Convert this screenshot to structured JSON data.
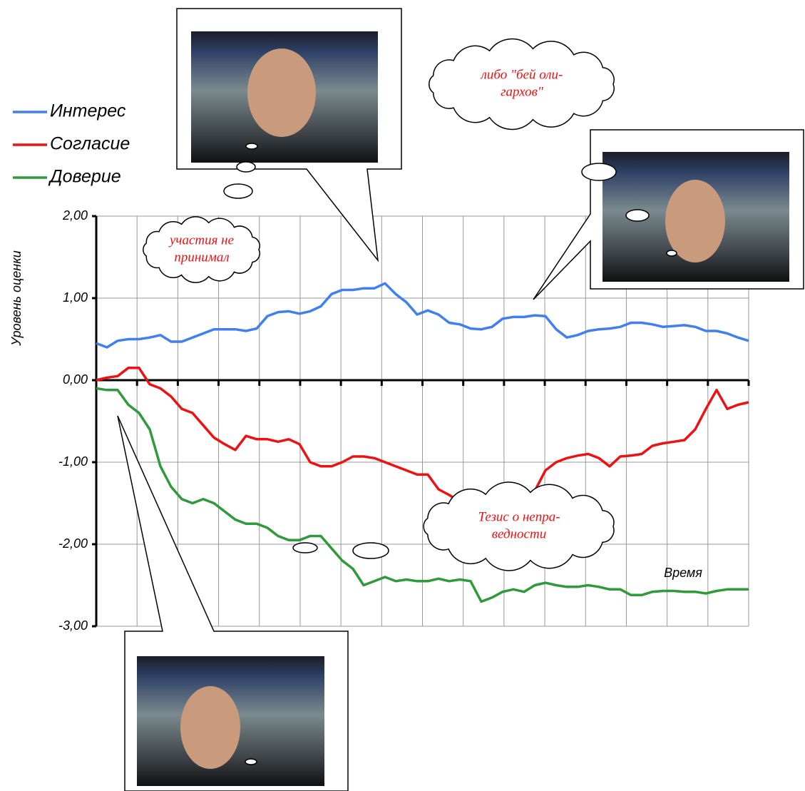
{
  "chart_data": {
    "type": "line",
    "y_label": "Уровень оценки",
    "x_label": "Время",
    "ylim": [
      -3,
      2
    ],
    "yticks": [
      {
        "value": 2,
        "label": "2,00"
      },
      {
        "value": 1,
        "label": "1,00"
      },
      {
        "value": 0,
        "label": "0,00"
      },
      {
        "value": -1,
        "label": "-1,00"
      },
      {
        "value": -2,
        "label": "-2,00"
      },
      {
        "value": -3,
        "label": "-3,00"
      }
    ],
    "grid": true,
    "series": [
      {
        "name": "Интерес",
        "color": "#3f7ff0",
        "values": [
          0.45,
          0.4,
          0.48,
          0.5,
          0.5,
          0.52,
          0.55,
          0.47,
          0.47,
          0.52,
          0.57,
          0.62,
          0.62,
          0.62,
          0.6,
          0.63,
          0.78,
          0.83,
          0.84,
          0.81,
          0.84,
          0.9,
          1.05,
          1.1,
          1.1,
          1.12,
          1.12,
          1.18,
          1.05,
          0.95,
          0.8,
          0.85,
          0.8,
          0.7,
          0.68,
          0.63,
          0.62,
          0.65,
          0.75,
          0.77,
          0.77,
          0.79,
          0.78,
          0.62,
          0.52,
          0.55,
          0.6,
          0.62,
          0.63,
          0.65,
          0.7,
          0.7,
          0.68,
          0.65,
          0.66,
          0.67,
          0.65,
          0.6,
          0.6,
          0.57,
          0.52,
          0.48
        ]
      },
      {
        "name": "Согласие",
        "color": "#ee1111",
        "values": [
          0.0,
          0.03,
          0.05,
          0.15,
          0.15,
          -0.05,
          -0.1,
          -0.2,
          -0.35,
          -0.4,
          -0.55,
          -0.7,
          -0.78,
          -0.85,
          -0.68,
          -0.72,
          -0.72,
          -0.75,
          -0.72,
          -0.78,
          -1.0,
          -1.05,
          -1.05,
          -1.0,
          -0.93,
          -0.93,
          -0.95,
          -1.0,
          -1.05,
          -1.1,
          -1.15,
          -1.15,
          -1.33,
          -1.4,
          -1.48,
          -1.58,
          -1.62,
          -1.6,
          -1.57,
          -1.55,
          -1.55,
          -1.35,
          -1.1,
          -1.0,
          -0.95,
          -0.92,
          -0.9,
          -0.95,
          -1.05,
          -0.93,
          -0.92,
          -0.9,
          -0.8,
          -0.77,
          -0.75,
          -0.73,
          -0.6,
          -0.35,
          -0.12,
          -0.35,
          -0.3,
          -0.27
        ]
      },
      {
        "name": "Доверие",
        "color": "#2e9a3a",
        "values": [
          -0.1,
          -0.12,
          -0.12,
          -0.3,
          -0.4,
          -0.6,
          -1.05,
          -1.3,
          -1.45,
          -1.5,
          -1.45,
          -1.5,
          -1.6,
          -1.7,
          -1.75,
          -1.75,
          -1.8,
          -1.9,
          -1.95,
          -1.95,
          -1.9,
          -1.9,
          -2.05,
          -2.2,
          -2.3,
          -2.5,
          -2.45,
          -2.4,
          -2.45,
          -2.43,
          -2.45,
          -2.45,
          -2.42,
          -2.45,
          -2.43,
          -2.45,
          -2.7,
          -2.65,
          -2.58,
          -2.55,
          -2.58,
          -2.5,
          -2.47,
          -2.5,
          -2.52,
          -2.52,
          -2.5,
          -2.52,
          -2.55,
          -2.55,
          -2.62,
          -2.62,
          -2.58,
          -2.57,
          -2.57,
          -2.58,
          -2.58,
          -2.6,
          -2.57,
          -2.55,
          -2.55,
          -2.55
        ]
      }
    ],
    "annotations": [
      {
        "lines": [
          "либо \"бей оли-",
          "гархов\""
        ]
      },
      {
        "lines": [
          "участия не",
          "принимал"
        ]
      },
      {
        "lines": [
          "Тезис о непра-",
          "ведности"
        ]
      }
    ]
  }
}
